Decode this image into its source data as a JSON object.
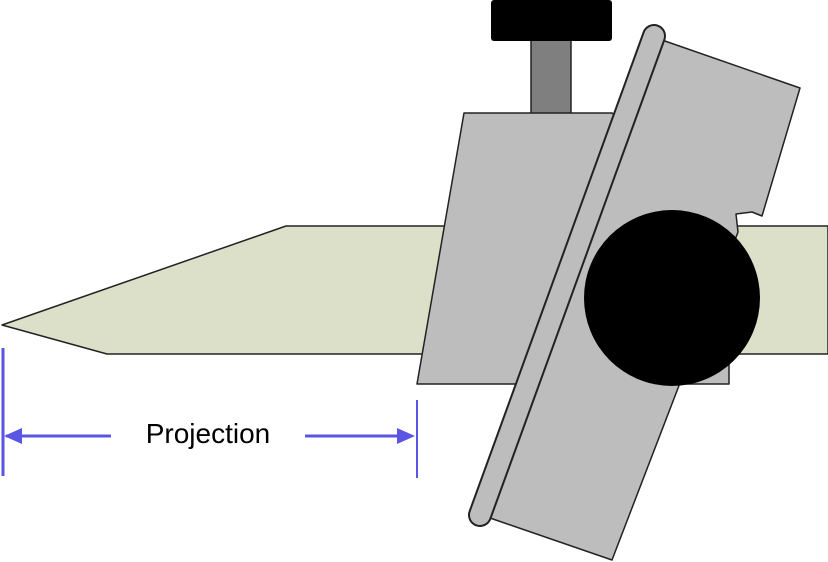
{
  "labels": {
    "projection": "Projection"
  },
  "colors": {
    "blade": "#dde0c8",
    "jig_body": "#bdbdbd",
    "outline": "#222222",
    "knob": "#000000",
    "screw_shaft": "#7f7f7f",
    "dimension_line": "#5b55e6"
  }
}
